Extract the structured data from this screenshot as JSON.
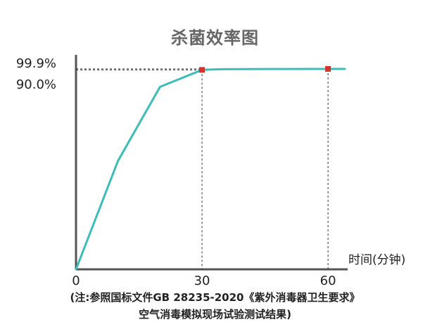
{
  "chart_data": {
    "type": "line",
    "title": "杀菌效率图",
    "xlabel": "时间(分钟)",
    "ylabel": "",
    "x": [
      0,
      10,
      20,
      30,
      35,
      40,
      50,
      60,
      64
    ],
    "series": [
      {
        "values": [
          0,
          50,
          84,
          98,
          99.4,
          99.5,
          99.7,
          99.9,
          99.9
        ]
      }
    ],
    "x_ticks": [
      "0",
      "30",
      "60"
    ],
    "y_ticks": [
      "99.9%",
      "90.0%"
    ],
    "highlight_points": [
      {
        "x": 30,
        "y": 98
      },
      {
        "x": 60,
        "y": 99.9
      }
    ],
    "xlim": [
      0,
      64
    ],
    "grid": false,
    "line_color": "#3dbdb8",
    "marker_color": "#d7322b"
  },
  "footnote": {
    "line1": "(注:参照国标文件GB 28235-2020《紫外消毒器卫生要求》",
    "line2": "空气消毒模拟现场试验测试结果)"
  }
}
